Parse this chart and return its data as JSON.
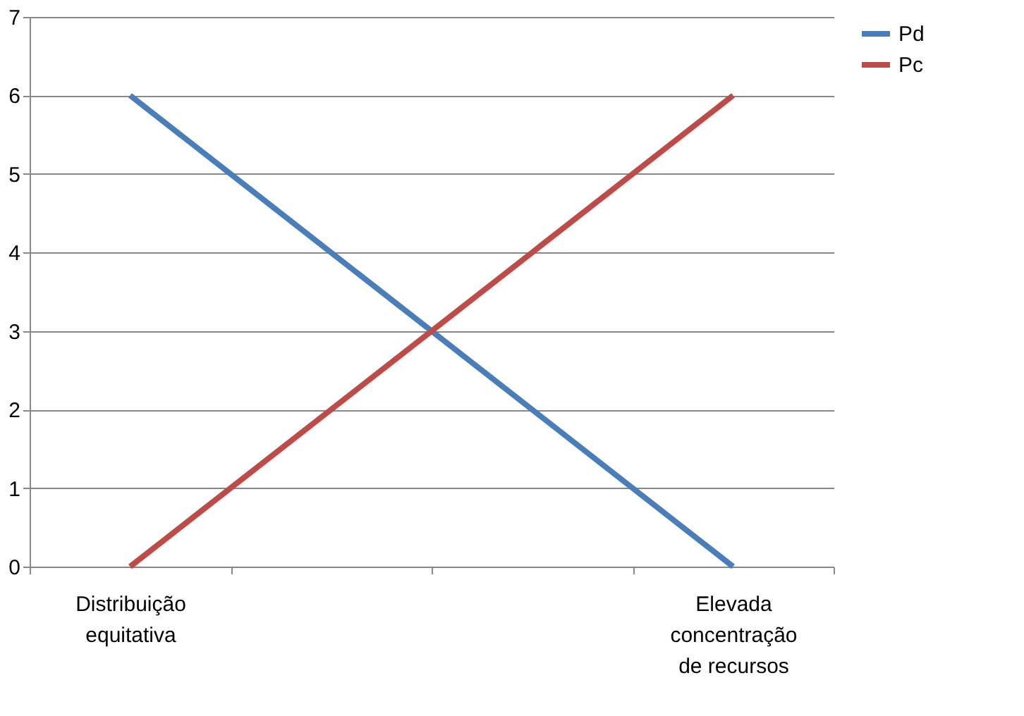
{
  "chart_data": {
    "type": "line",
    "categories": [
      "Distribuição equitativa",
      null,
      null,
      "Elevada concentração de recursos"
    ],
    "series": [
      {
        "name": "Pd",
        "color": "#4a7ebb",
        "values": [
          6,
          4,
          2,
          0
        ]
      },
      {
        "name": "Pc",
        "color": "#be4b48",
        "values": [
          0,
          2,
          4,
          6
        ]
      }
    ],
    "ylim": [
      0,
      7
    ],
    "yticks": [
      0,
      1,
      2,
      3,
      4,
      5,
      6,
      7
    ],
    "grid": "y",
    "legend": "right",
    "marker": "none",
    "line_style": "solid"
  }
}
